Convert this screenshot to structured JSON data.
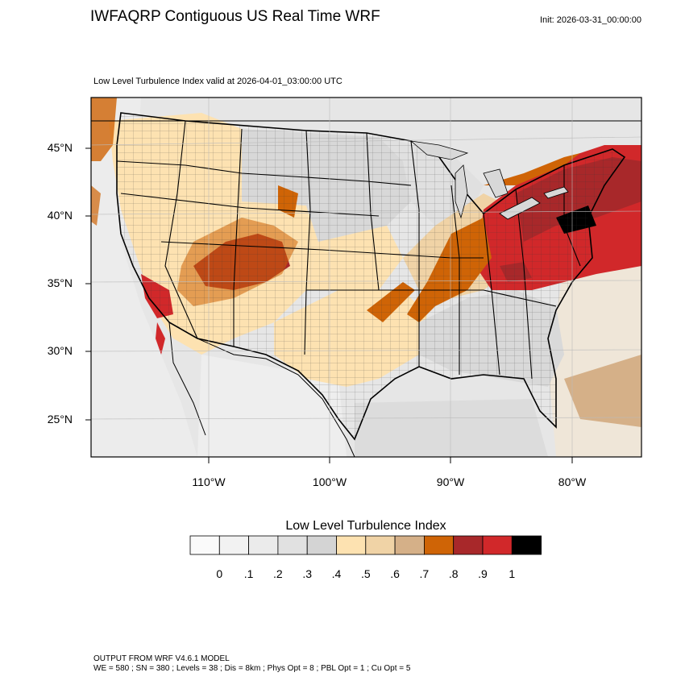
{
  "header": {
    "title": "IWFAQRP Contiguous US Real Time WRF",
    "init": "Init: 2026-03-31_00:00:00",
    "subtitle": "Low Level Turbulence Index valid at 2026-04-01_03:00:00 UTC"
  },
  "map": {
    "lat_labels": [
      "45°N",
      "40°N",
      "35°N",
      "30°N",
      "25°N"
    ],
    "lon_labels": [
      "110°W",
      "100°W",
      "90°W",
      "80°W"
    ]
  },
  "colorbar": {
    "title": "Low Level Turbulence Index",
    "colors": [
      "#fafafa",
      "#f2f2f2",
      "#ebebeb",
      "#e1e1e1",
      "#d4d4d4",
      "#fde2b1",
      "#f0d3a6",
      "#d5b088",
      "#cf6406",
      "#a8282a",
      "#d1282a",
      "#000000"
    ],
    "labels": [
      "0",
      ".1",
      ".2",
      ".3",
      ".4",
      ".5",
      ".6",
      ".7",
      ".8",
      ".9",
      "1"
    ]
  },
  "footer": {
    "line1": "OUTPUT FROM WRF V4.6.1 MODEL",
    "line2": "WE = 580 ; SN = 380 ; Levels = 38 ; Dis = 8km ; Phys Opt = 8 ; PBL Opt = 1 ; Cu Opt = 5"
  }
}
